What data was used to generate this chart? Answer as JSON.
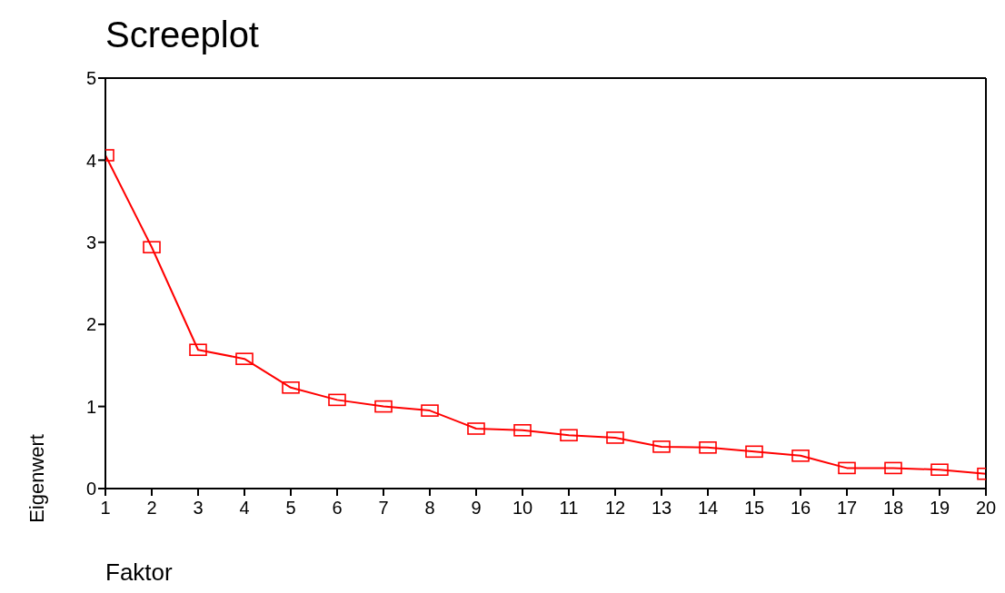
{
  "chart_data": {
    "type": "line",
    "title": "Screeplot",
    "xlabel": "Faktor",
    "ylabel": "Eigenwert",
    "x": [
      1,
      2,
      3,
      4,
      5,
      6,
      7,
      8,
      9,
      10,
      11,
      12,
      13,
      14,
      15,
      16,
      17,
      18,
      19,
      20
    ],
    "series": [
      {
        "color": "#ff0000",
        "values": [
          4.06,
          2.94,
          1.69,
          1.58,
          1.23,
          1.08,
          1.0,
          0.95,
          0.73,
          0.71,
          0.65,
          0.62,
          0.51,
          0.5,
          0.45,
          0.4,
          0.25,
          0.25,
          0.23,
          0.18
        ]
      }
    ],
    "xlim": [
      1,
      20
    ],
    "xticks": [
      1,
      2,
      3,
      4,
      5,
      6,
      7,
      8,
      9,
      10,
      11,
      12,
      13,
      14,
      15,
      16,
      17,
      18,
      19,
      20
    ],
    "ylim": [
      0,
      5
    ],
    "yticks": [
      0,
      1,
      2,
      3,
      4,
      5
    ],
    "grid": false,
    "legend": false,
    "marker": "square",
    "line_style": "solid"
  }
}
